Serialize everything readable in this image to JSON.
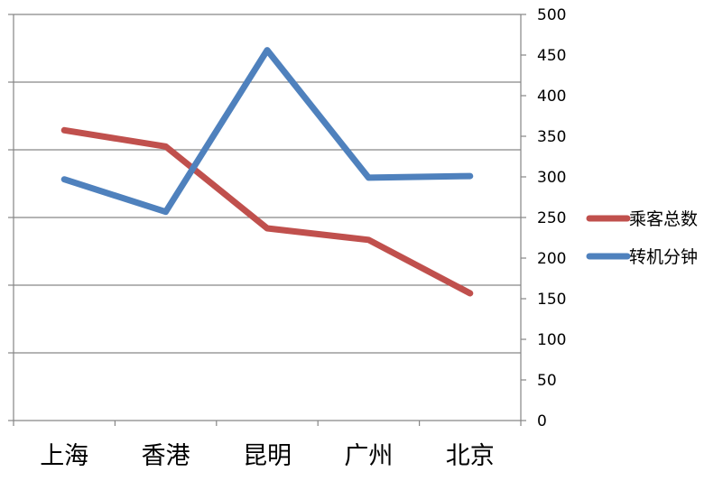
{
  "chart_data": {
    "type": "line",
    "categories": [
      "上海",
      "香港",
      "昆明",
      "广州",
      "北京"
    ],
    "series": [
      {
        "name": "乘客总数",
        "color": "#C0504D",
        "values": [
          429,
          405,
          284,
          267,
          188
        ],
        "axis": "left"
      },
      {
        "name": "转机分钟",
        "color": "#4F81BD",
        "values": [
          297,
          257,
          456,
          299,
          301
        ],
        "axis": "right"
      }
    ],
    "right_axis": {
      "ylim": [
        0,
        500
      ],
      "ticks": [
        0,
        50,
        100,
        150,
        200,
        250,
        300,
        350,
        400,
        450,
        500
      ]
    },
    "left_axis": {
      "ylim": [
        0,
        600
      ]
    },
    "grid": true,
    "legend_position": "right"
  }
}
